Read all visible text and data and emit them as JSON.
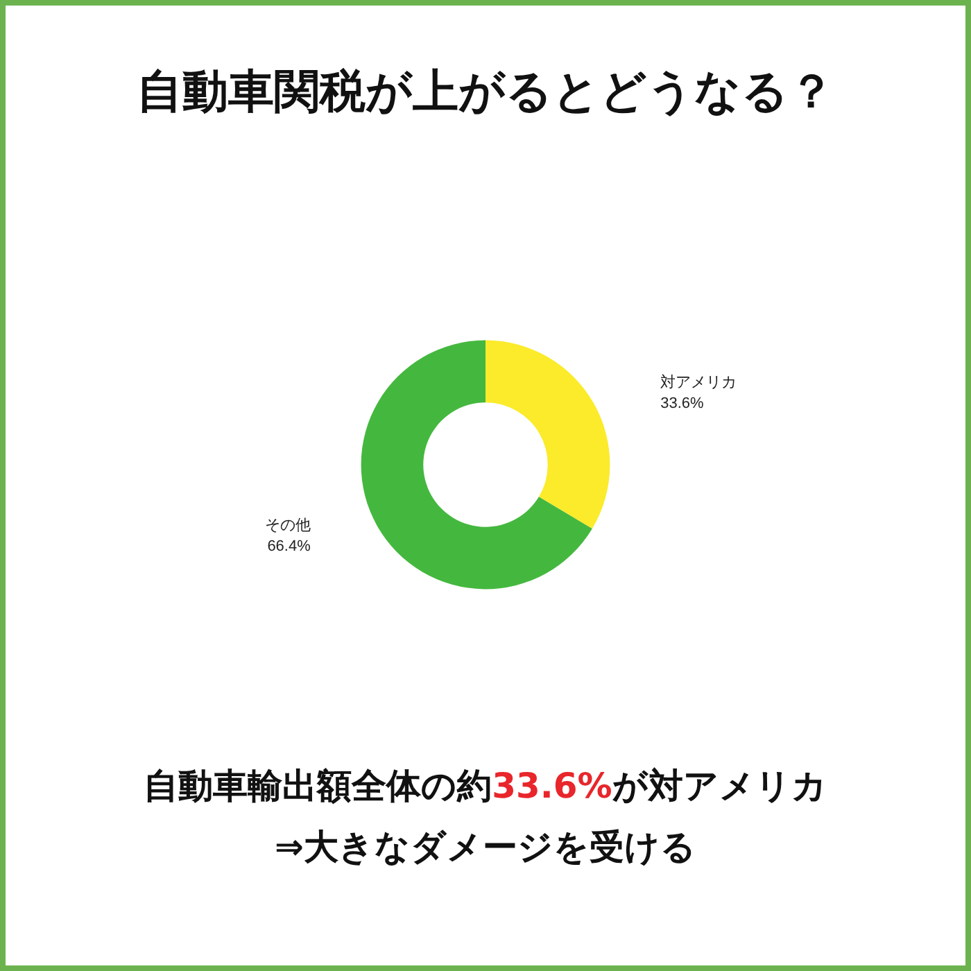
{
  "chart_data": {
    "type": "donut",
    "title": "自動車関税が上がるとどうなる？",
    "categories": [
      "対アメリカ",
      "その他"
    ],
    "values": [
      33.6,
      66.4
    ],
    "colors": [
      "#fbeb2a",
      "#44b83e"
    ],
    "value_labels": [
      "33.6%",
      "66.4%"
    ],
    "annotations": [
      "自動車輸出額全体の約33.6%が対アメリカ",
      "⇒大きなダメージを受ける"
    ],
    "legend": false
  }
}
